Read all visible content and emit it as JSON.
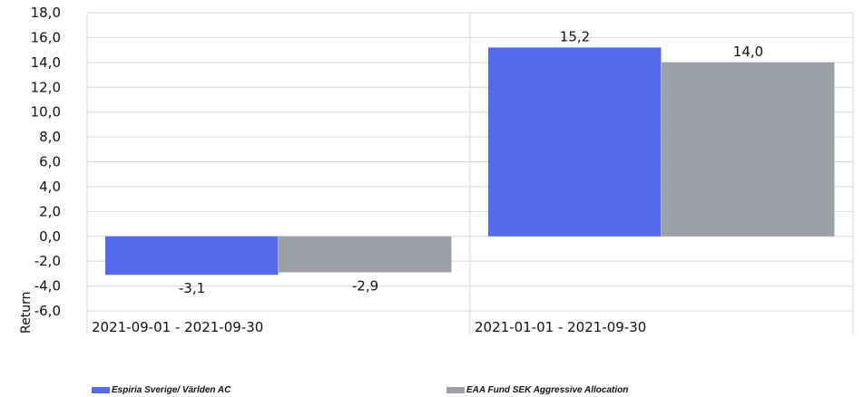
{
  "chart_data": {
    "type": "bar",
    "categories": [
      "2021-09-01 - 2021-09-30",
      "2021-01-01 - 2021-09-30"
    ],
    "series": [
      {
        "name": "Espiria Sverige/ Världen AC",
        "values": [
          -3.1,
          15.2
        ],
        "labels": [
          "-3,1",
          "15,2"
        ],
        "color": "#5569eb"
      },
      {
        "name": "EAA Fund SEK Aggressive Allocation",
        "values": [
          -2.9,
          14.0
        ],
        "labels": [
          "-2,9",
          "14,0"
        ],
        "color": "#9ca0a6"
      }
    ],
    "ylabel": "Return",
    "ylim": [
      -6,
      18
    ],
    "yticks": [
      18,
      16,
      14,
      12,
      10,
      8,
      6,
      4,
      2,
      0,
      -2,
      -4,
      -6
    ],
    "ytick_labels": [
      "18,0",
      "16,0",
      "14,0",
      "12,0",
      "10,0",
      "8,0",
      "6,0",
      "4,0",
      "2,0",
      "0,0",
      "-2,0",
      "-4,0",
      "-6,0"
    ],
    "grid": true,
    "legend_position": "bottom"
  }
}
